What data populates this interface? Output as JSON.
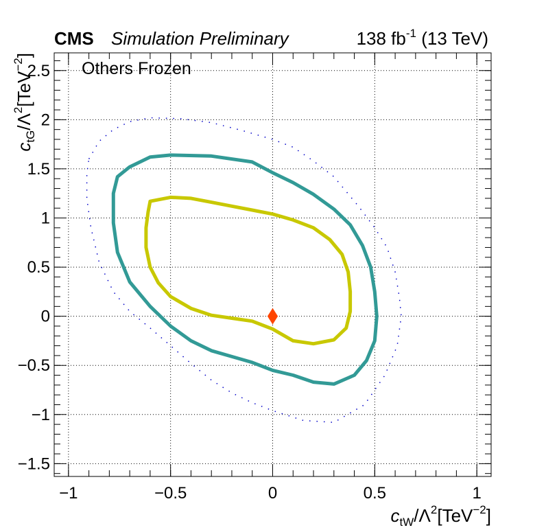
{
  "header": {
    "experiment": "CMS",
    "status": "Simulation Preliminary",
    "lumi_prefix": "138 fb",
    "lumi_exponent": "-1",
    "lumi_suffix": " (13 TeV)"
  },
  "chart_data": {
    "type": "line",
    "annotation": "Others Frozen",
    "xlabel": {
      "base": "c",
      "sub": "tW",
      "mid": "/Λ",
      "sup": "2",
      "unit_open": "[TeV",
      "unit_sup": "−2",
      "unit_close": "]"
    },
    "ylabel": {
      "base": "c",
      "sub": "tG",
      "mid": "/Λ",
      "sup": "2",
      "unit_open": "[TeV",
      "unit_sup": "−2",
      "unit_close": "]"
    },
    "xlim": [
      -1.07,
      1.07
    ],
    "ylim": [
      -1.63,
      2.68
    ],
    "x_ticks": [
      -1,
      -0.5,
      0,
      0.5,
      1
    ],
    "x_tick_labels": [
      "−1",
      "−0.5",
      "0",
      "0.5",
      "1"
    ],
    "y_ticks": [
      -1.5,
      -1,
      -0.5,
      0,
      0.5,
      1,
      1.5,
      2,
      2.5
    ],
    "y_tick_labels": [
      "−1.5",
      "−1",
      "−0.5",
      "0",
      "0.5",
      "1",
      "1.5",
      "2",
      "2.5"
    ],
    "grid": true,
    "best_fit": {
      "x": 0,
      "y": 0,
      "marker": "diamond",
      "color": "#ff4500"
    },
    "series": [
      {
        "style": "solid",
        "color": "#c8c800",
        "points": [
          [
            -0.6,
            1.17
          ],
          [
            -0.5,
            1.21
          ],
          [
            -0.4,
            1.2
          ],
          [
            -0.3,
            1.16
          ],
          [
            -0.2,
            1.12
          ],
          [
            -0.1,
            1.08
          ],
          [
            0,
            1.04
          ],
          [
            0.1,
            0.98
          ],
          [
            0.2,
            0.9
          ],
          [
            0.28,
            0.78
          ],
          [
            0.34,
            0.63
          ],
          [
            0.37,
            0.45
          ],
          [
            0.38,
            0.25
          ],
          [
            0.38,
            0.05
          ],
          [
            0.36,
            -0.12
          ],
          [
            0.3,
            -0.24
          ],
          [
            0.2,
            -0.28
          ],
          [
            0.1,
            -0.25
          ],
          [
            0,
            -0.13
          ],
          [
            -0.1,
            -0.05
          ],
          [
            -0.2,
            -0.02
          ],
          [
            -0.3,
            0.01
          ],
          [
            -0.4,
            0.08
          ],
          [
            -0.5,
            0.2
          ],
          [
            -0.56,
            0.34
          ],
          [
            -0.6,
            0.5
          ],
          [
            -0.62,
            0.7
          ],
          [
            -0.62,
            0.9
          ],
          [
            -0.61,
            1.06
          ],
          [
            -0.6,
            1.17
          ]
        ]
      },
      {
        "style": "solid",
        "color": "#329a96",
        "points": [
          [
            -0.7,
            1.52
          ],
          [
            -0.6,
            1.62
          ],
          [
            -0.5,
            1.64
          ],
          [
            -0.3,
            1.63
          ],
          [
            -0.1,
            1.57
          ],
          [
            0,
            1.46
          ],
          [
            0.1,
            1.36
          ],
          [
            0.2,
            1.24
          ],
          [
            0.3,
            1.09
          ],
          [
            0.38,
            0.93
          ],
          [
            0.44,
            0.72
          ],
          [
            0.48,
            0.5
          ],
          [
            0.5,
            0.25
          ],
          [
            0.51,
            0
          ],
          [
            0.5,
            -0.25
          ],
          [
            0.46,
            -0.45
          ],
          [
            0.4,
            -0.6
          ],
          [
            0.3,
            -0.69
          ],
          [
            0.2,
            -0.67
          ],
          [
            0.1,
            -0.6
          ],
          [
            0,
            -0.55
          ],
          [
            -0.1,
            -0.47
          ],
          [
            -0.2,
            -0.41
          ],
          [
            -0.3,
            -0.35
          ],
          [
            -0.4,
            -0.25
          ],
          [
            -0.5,
            -0.1
          ],
          [
            -0.6,
            0.1
          ],
          [
            -0.7,
            0.35
          ],
          [
            -0.76,
            0.65
          ],
          [
            -0.78,
            0.95
          ],
          [
            -0.78,
            1.25
          ],
          [
            -0.76,
            1.42
          ],
          [
            -0.7,
            1.52
          ]
        ]
      },
      {
        "style": "dotted",
        "color": "#0000c8",
        "points": [
          [
            -0.9,
            1.6
          ],
          [
            -0.85,
            1.78
          ],
          [
            -0.78,
            1.9
          ],
          [
            -0.7,
            1.98
          ],
          [
            -0.6,
            2.02
          ],
          [
            -0.45,
            2.01
          ],
          [
            -0.3,
            1.97
          ],
          [
            -0.15,
            1.89
          ],
          [
            0,
            1.8
          ],
          [
            0.1,
            1.72
          ],
          [
            0.2,
            1.58
          ],
          [
            0.3,
            1.42
          ],
          [
            0.42,
            1.12
          ],
          [
            0.5,
            0.9
          ],
          [
            0.56,
            0.7
          ],
          [
            0.6,
            0.45
          ],
          [
            0.62,
            0.2
          ],
          [
            0.63,
            0
          ],
          [
            0.61,
            -0.3
          ],
          [
            0.55,
            -0.6
          ],
          [
            0.45,
            -0.9
          ],
          [
            0.3,
            -1.08
          ],
          [
            0.15,
            -1.06
          ],
          [
            0,
            -0.96
          ],
          [
            -0.1,
            -0.88
          ],
          [
            -0.2,
            -0.78
          ],
          [
            -0.3,
            -0.65
          ],
          [
            -0.4,
            -0.48
          ],
          [
            -0.5,
            -0.3
          ],
          [
            -0.6,
            -0.12
          ],
          [
            -0.7,
            0.05
          ],
          [
            -0.78,
            0.25
          ],
          [
            -0.85,
            0.55
          ],
          [
            -0.89,
            0.9
          ],
          [
            -0.91,
            1.2
          ],
          [
            -0.91,
            1.45
          ],
          [
            -0.9,
            1.6
          ]
        ]
      }
    ]
  }
}
